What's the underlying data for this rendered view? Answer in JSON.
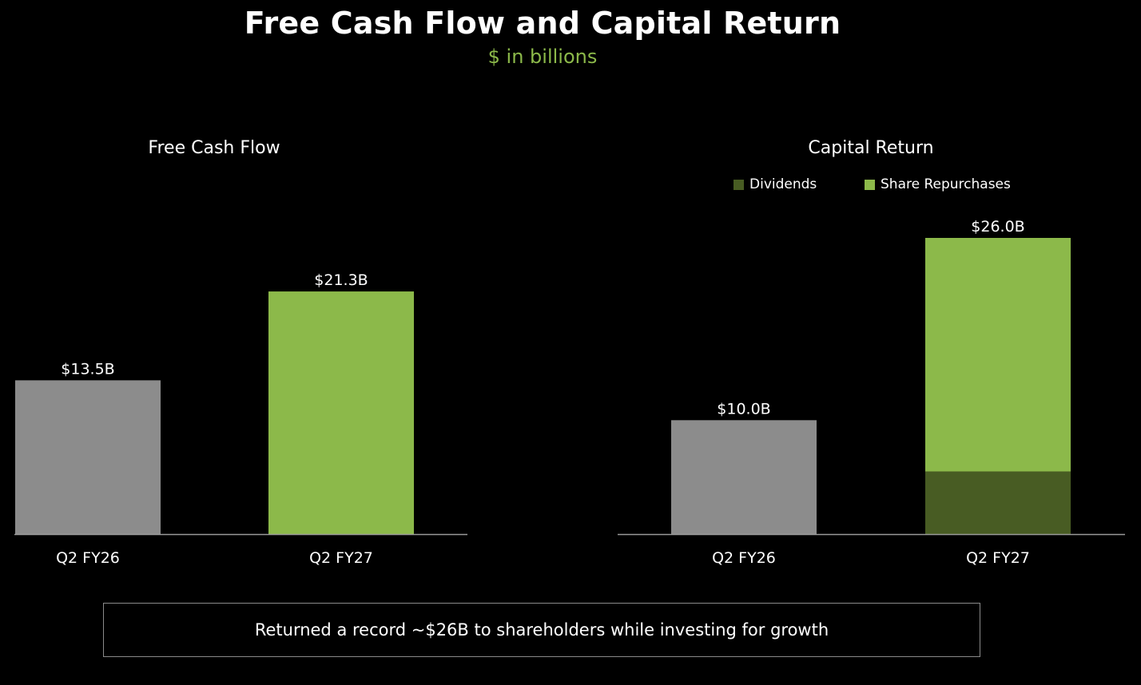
{
  "title": "Free Cash Flow and Capital Return",
  "subtitle": "$ in billions",
  "callout": "Returned a record ~$26B to shareholders while investing for growth",
  "colors": {
    "accent": "#8cb94a",
    "gray": "#8c8c8c",
    "dark_green": "#485c23",
    "axis": "#9a9a9a"
  },
  "chart_data": [
    {
      "type": "bar",
      "title": "Free Cash Flow",
      "categories": [
        "Q2 FY26",
        "Q2 FY27"
      ],
      "values": [
        13.5,
        21.3
      ],
      "data_labels": [
        "$13.5B",
        "$21.3B"
      ],
      "bar_colors": [
        "#8c8c8c",
        "#8cb94a"
      ],
      "ylim": [
        0,
        26.0
      ],
      "grid": false
    },
    {
      "type": "bar",
      "stacked": true,
      "title": "Capital Return",
      "categories": [
        "Q2 FY26",
        "Q2 FY27"
      ],
      "legend": [
        {
          "label": "Dividends",
          "color": "#485c23"
        },
        {
          "label": "Share Repurchases",
          "color": "#8cb94a"
        }
      ],
      "legend_position": "top",
      "totals": [
        10.0,
        26.0
      ],
      "total_labels": [
        "$10.0B",
        "$26.0B"
      ],
      "stacks": [
        [
          {
            "value": 10.0,
            "color": "#8c8c8c"
          }
        ],
        [
          {
            "value": 5.5,
            "color": "#485c23"
          },
          {
            "value": 20.5,
            "color": "#8cb94a"
          }
        ]
      ],
      "ylim": [
        0,
        26.0
      ],
      "grid": false
    }
  ]
}
